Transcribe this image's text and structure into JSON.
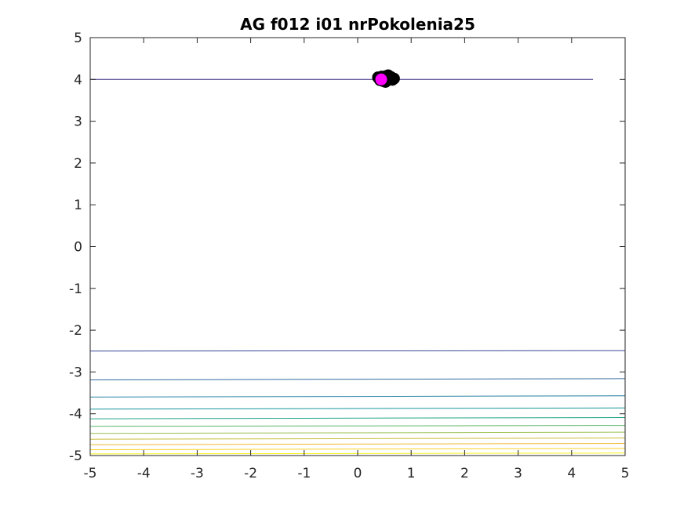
{
  "chart_data": {
    "type": "contour",
    "title": "AG f012 i01 nrPokolenia25",
    "xlabel": "",
    "ylabel": "",
    "xlim": [
      -5,
      5
    ],
    "ylim": [
      -5,
      5
    ],
    "xticks": [
      "-5",
      "-4",
      "-3",
      "-2",
      "-1",
      "0",
      "1",
      "2",
      "3",
      "4",
      "5"
    ],
    "yticks": [
      "-5",
      "-4",
      "-3",
      "-2",
      "-1",
      "0",
      "1",
      "2",
      "3",
      "4",
      "5"
    ],
    "grid": false,
    "contour_levels": [
      {
        "y_left": 4.0,
        "y_right": 4.0,
        "x_start": -5,
        "x_end": 4.4,
        "color": "#3d2b86"
      },
      {
        "y_left": -2.5,
        "y_right": -2.49,
        "x_start": -5,
        "x_end": 5,
        "color": "#3b4a9a"
      },
      {
        "y_left": -3.19,
        "y_right": -3.16,
        "x_start": -5,
        "x_end": 5,
        "color": "#2f6aa0"
      },
      {
        "y_left": -3.6,
        "y_right": -3.57,
        "x_start": -5,
        "x_end": 5,
        "color": "#2381a3"
      },
      {
        "y_left": -3.89,
        "y_right": -3.86,
        "x_start": -5,
        "x_end": 5,
        "color": "#18969c"
      },
      {
        "y_left": -4.12,
        "y_right": -4.09,
        "x_start": -5,
        "x_end": 5,
        "color": "#23a58a"
      },
      {
        "y_left": -4.3,
        "y_right": -4.28,
        "x_start": -5,
        "x_end": 5,
        "color": "#5eb76b"
      },
      {
        "y_left": -4.47,
        "y_right": -4.44,
        "x_start": -5,
        "x_end": 5,
        "color": "#98bf4e"
      },
      {
        "y_left": -4.61,
        "y_right": -4.58,
        "x_start": -5,
        "x_end": 5,
        "color": "#c8bd3b"
      },
      {
        "y_left": -4.74,
        "y_right": -4.71,
        "x_start": -5,
        "x_end": 5,
        "color": "#efb932"
      },
      {
        "y_left": -4.86,
        "y_right": -4.83,
        "x_start": -5,
        "x_end": 5,
        "color": "#f9d22a"
      },
      {
        "y_left": -4.96,
        "y_right": -4.94,
        "x_start": -5,
        "x_end": 5,
        "color": "#f9f41c"
      }
    ],
    "population_points": [
      {
        "x": 0.38,
        "y": 4.05
      },
      {
        "x": 0.42,
        "y": 3.98
      },
      {
        "x": 0.45,
        "y": 4.07
      },
      {
        "x": 0.48,
        "y": 3.96
      },
      {
        "x": 0.5,
        "y": 4.04
      },
      {
        "x": 0.53,
        "y": 4.08
      },
      {
        "x": 0.55,
        "y": 3.97
      },
      {
        "x": 0.58,
        "y": 4.03
      },
      {
        "x": 0.6,
        "y": 4.0
      },
      {
        "x": 0.62,
        "y": 4.06
      },
      {
        "x": 0.65,
        "y": 3.99
      },
      {
        "x": 0.68,
        "y": 4.02
      },
      {
        "x": 0.4,
        "y": 4.02
      },
      {
        "x": 0.57,
        "y": 4.1
      },
      {
        "x": 0.52,
        "y": 3.94
      }
    ],
    "best_point": {
      "x": 0.44,
      "y": 4.0
    },
    "colors": {
      "population": "#000000",
      "best": "#ff00ff",
      "axes": "#262626"
    }
  }
}
